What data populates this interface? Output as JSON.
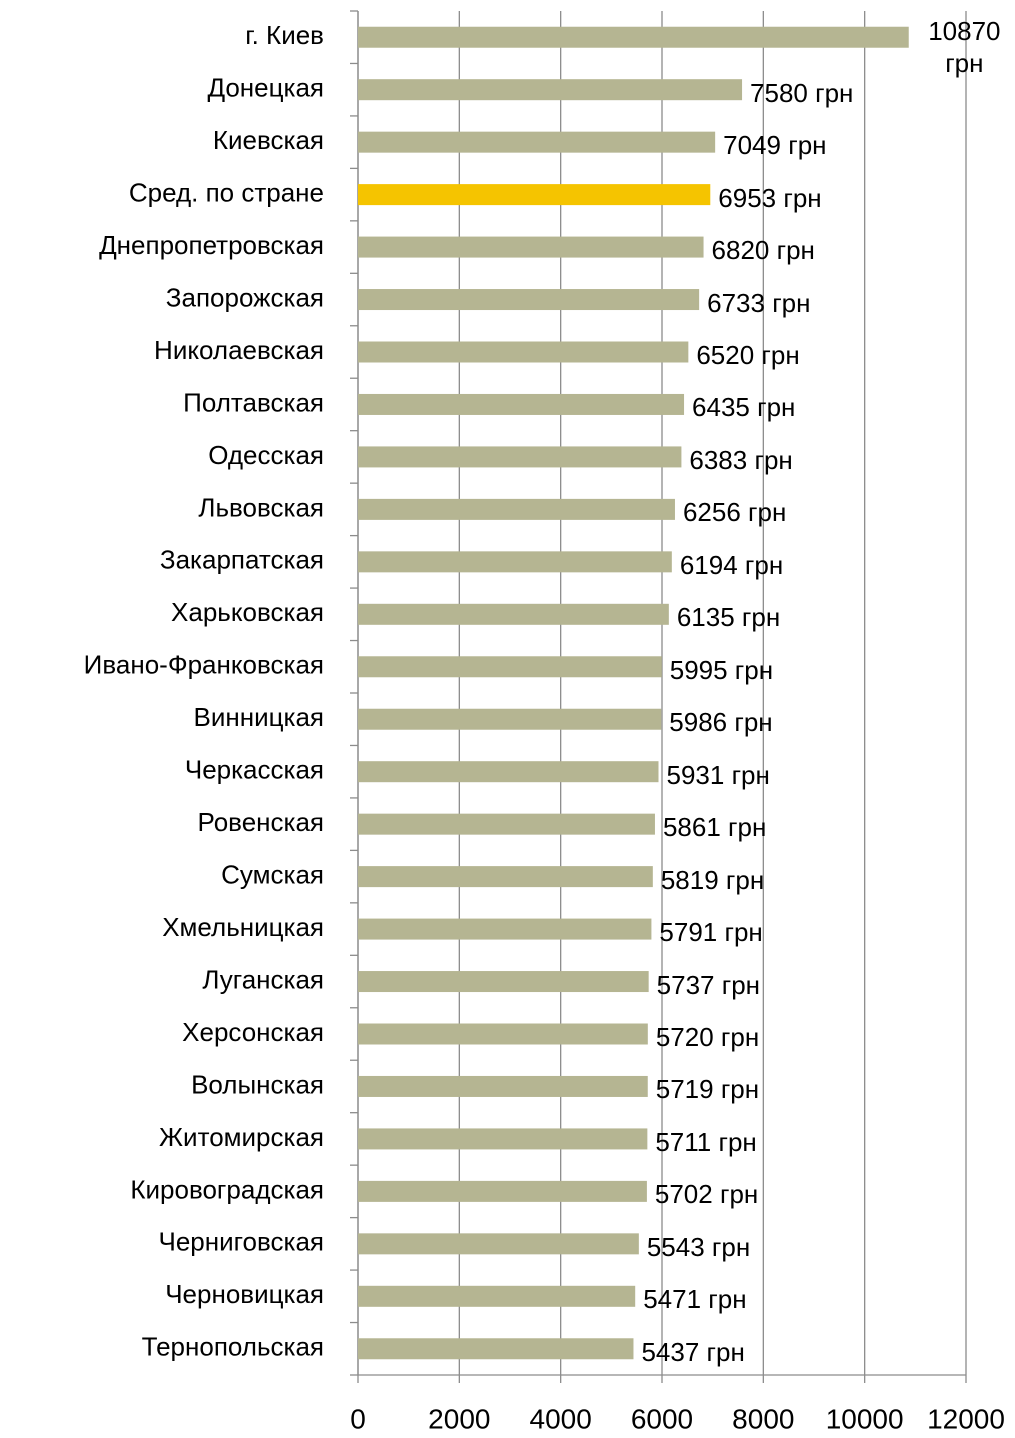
{
  "chart_data": {
    "type": "bar",
    "orientation": "horizontal",
    "categories": [
      "г. Киев",
      "Донецкая",
      "Киевская",
      "Сред. по стране",
      "Днепропетровская",
      "Запорожская",
      "Николаевская",
      "Полтавская",
      "Одесская",
      "Львовская",
      "Закарпатская",
      "Харьковская",
      "Ивано-Франковская",
      "Винницкая",
      "Черкасская",
      "Ровенская",
      "Сумская",
      "Хмельницкая",
      "Луганская",
      "Херсонская",
      "Волынская",
      "Житомирская",
      "Кировоградская",
      "Черниговская",
      "Черновицкая",
      "Тернопольская"
    ],
    "values": [
      10870,
      7580,
      7049,
      6953,
      6820,
      6733,
      6520,
      6435,
      6383,
      6256,
      6194,
      6135,
      5995,
      5986,
      5931,
      5861,
      5819,
      5791,
      5737,
      5720,
      5719,
      5711,
      5702,
      5543,
      5471,
      5437
    ],
    "value_labels": [
      "10870 грн",
      "7580 грн",
      "7049 грн",
      "6953 грн",
      "6820 грн",
      "6733 грн",
      "6520 грн",
      "6435 грн",
      "6383 грн",
      "6256 грн",
      "6194 грн",
      "6135 грн",
      "5995 грн",
      "5986 грн",
      "5931 грн",
      "5861 грн",
      "5819 грн",
      "5791 грн",
      "5737 грн",
      "5720 грн",
      "5719 грн",
      "5711 грн",
      "5702 грн",
      "5543 грн",
      "5471 грн",
      "5437 грн"
    ],
    "colors": [
      "#b5b592",
      "#b5b592",
      "#b5b592",
      "#f5c400",
      "#b5b592",
      "#b5b592",
      "#b5b592",
      "#b5b592",
      "#b5b592",
      "#b5b592",
      "#b5b592",
      "#b5b592",
      "#b5b592",
      "#b5b592",
      "#b5b592",
      "#b5b592",
      "#b5b592",
      "#b5b592",
      "#b5b592",
      "#b5b592",
      "#b5b592",
      "#b5b592",
      "#b5b592",
      "#b5b592",
      "#b5b592",
      "#b5b592"
    ],
    "xlim": [
      0,
      12000
    ],
    "xticks": [
      0,
      2000,
      4000,
      6000,
      8000,
      10000,
      12000
    ],
    "grid": true
  }
}
